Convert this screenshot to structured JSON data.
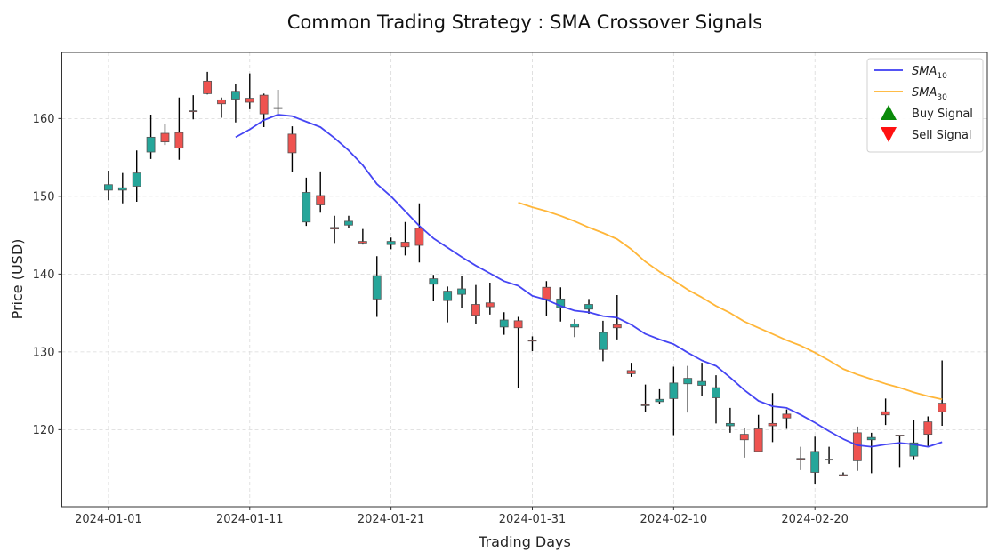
{
  "chart_data": {
    "type": "candlestick",
    "title": "Common Trading Strategy :  SMA Crossover Signals",
    "xlabel": "Trading Days",
    "ylabel": "Price (USD)",
    "ylim": [
      110.1,
      168.5
    ],
    "xlim_days": [
      -3.3,
      62.2
    ],
    "start_date": "2024-01-01",
    "grid": true,
    "legend_position": "top-right",
    "x_ticks": [
      {
        "day": 0,
        "label": "2024-01-01"
      },
      {
        "day": 10,
        "label": "2024-01-11"
      },
      {
        "day": 20,
        "label": "2024-01-21"
      },
      {
        "day": 30,
        "label": "2024-01-31"
      },
      {
        "day": 40,
        "label": "2024-02-10"
      },
      {
        "day": 50,
        "label": "2024-02-20"
      }
    ],
    "y_ticks": [
      120,
      130,
      140,
      150,
      160
    ],
    "colors": {
      "up": "#26a69a",
      "down": "#ef5350",
      "sma10": "#3b3bf2",
      "sma30": "#ffb22e",
      "buy": "#0a8a0a",
      "sell": "#ff1111"
    },
    "legend": [
      {
        "key": "sma10",
        "label": "SMA",
        "sub": "10",
        "kind": "line"
      },
      {
        "key": "sma30",
        "label": "SMA",
        "sub": "30",
        "kind": "line"
      },
      {
        "key": "buy",
        "label": "Buy Signal",
        "kind": "up-triangle"
      },
      {
        "key": "sell",
        "label": "Sell Signal",
        "kind": "down-triangle"
      }
    ],
    "ohlc": [
      {
        "day": 0,
        "o": 150.8,
        "h": 153.3,
        "l": 149.5,
        "c": 151.5
      },
      {
        "day": 1,
        "o": 150.8,
        "h": 153.0,
        "l": 149.1,
        "c": 151.1
      },
      {
        "day": 2,
        "o": 151.3,
        "h": 155.9,
        "l": 149.3,
        "c": 153.0
      },
      {
        "day": 3,
        "o": 155.7,
        "h": 160.5,
        "l": 154.8,
        "c": 157.6
      },
      {
        "day": 4,
        "o": 158.1,
        "h": 159.3,
        "l": 156.6,
        "c": 157.0
      },
      {
        "day": 5,
        "o": 158.2,
        "h": 162.7,
        "l": 154.7,
        "c": 156.2
      },
      {
        "day": 6,
        "o": 161.0,
        "h": 163.0,
        "l": 159.9,
        "c": 160.9
      },
      {
        "day": 7,
        "o": 164.8,
        "h": 166.0,
        "l": 163.1,
        "c": 163.2
      },
      {
        "day": 8,
        "o": 162.4,
        "h": 162.7,
        "l": 160.1,
        "c": 161.9
      },
      {
        "day": 9,
        "o": 162.5,
        "h": 164.4,
        "l": 159.5,
        "c": 163.5
      },
      {
        "day": 10,
        "o": 162.6,
        "h": 165.8,
        "l": 161.2,
        "c": 162.1
      },
      {
        "day": 11,
        "o": 163.0,
        "h": 163.2,
        "l": 158.9,
        "c": 160.6
      },
      {
        "day": 12,
        "o": 161.4,
        "h": 163.7,
        "l": 160.6,
        "c": 161.3
      },
      {
        "day": 13,
        "o": 158.0,
        "h": 159.0,
        "l": 153.1,
        "c": 155.6
      },
      {
        "day": 14,
        "o": 146.7,
        "h": 152.4,
        "l": 146.2,
        "c": 150.5
      },
      {
        "day": 15,
        "o": 150.1,
        "h": 153.2,
        "l": 147.9,
        "c": 148.9
      },
      {
        "day": 16,
        "o": 146.0,
        "h": 147.5,
        "l": 144.0,
        "c": 145.8
      },
      {
        "day": 17,
        "o": 146.3,
        "h": 147.5,
        "l": 145.9,
        "c": 146.8
      },
      {
        "day": 18,
        "o": 144.2,
        "h": 145.8,
        "l": 143.8,
        "c": 144.0
      },
      {
        "day": 19,
        "o": 136.8,
        "h": 142.3,
        "l": 134.5,
        "c": 139.8
      },
      {
        "day": 20,
        "o": 143.8,
        "h": 144.7,
        "l": 143.2,
        "c": 144.2
      },
      {
        "day": 21,
        "o": 144.1,
        "h": 146.7,
        "l": 142.4,
        "c": 143.5
      },
      {
        "day": 22,
        "o": 145.9,
        "h": 149.1,
        "l": 141.5,
        "c": 143.7
      },
      {
        "day": 23,
        "o": 138.7,
        "h": 139.9,
        "l": 136.5,
        "c": 139.4
      },
      {
        "day": 24,
        "o": 136.6,
        "h": 138.4,
        "l": 133.8,
        "c": 137.8
      },
      {
        "day": 25,
        "o": 137.4,
        "h": 139.8,
        "l": 135.6,
        "c": 138.1
      },
      {
        "day": 26,
        "o": 136.1,
        "h": 138.6,
        "l": 133.6,
        "c": 134.7
      },
      {
        "day": 27,
        "o": 136.3,
        "h": 138.9,
        "l": 134.8,
        "c": 135.8
      },
      {
        "day": 28,
        "o": 133.2,
        "h": 135.1,
        "l": 132.2,
        "c": 134.1
      },
      {
        "day": 29,
        "o": 134.0,
        "h": 134.5,
        "l": 125.4,
        "c": 133.1
      },
      {
        "day": 30,
        "o": 131.5,
        "h": 132.0,
        "l": 130.1,
        "c": 131.4
      },
      {
        "day": 31,
        "o": 138.3,
        "h": 139.1,
        "l": 134.6,
        "c": 136.8
      },
      {
        "day": 32,
        "o": 135.7,
        "h": 138.3,
        "l": 133.9,
        "c": 136.8
      },
      {
        "day": 33,
        "o": 133.2,
        "h": 134.2,
        "l": 131.9,
        "c": 133.6
      },
      {
        "day": 34,
        "o": 135.5,
        "h": 136.8,
        "l": 134.9,
        "c": 136.1
      },
      {
        "day": 35,
        "o": 130.3,
        "h": 134.0,
        "l": 128.8,
        "c": 132.5
      },
      {
        "day": 36,
        "o": 133.5,
        "h": 137.3,
        "l": 131.6,
        "c": 133.1
      },
      {
        "day": 37,
        "o": 127.6,
        "h": 128.6,
        "l": 126.8,
        "c": 127.2
      },
      {
        "day": 38,
        "o": 123.2,
        "h": 125.8,
        "l": 122.3,
        "c": 123.1
      },
      {
        "day": 39,
        "o": 123.6,
        "h": 125.2,
        "l": 123.3,
        "c": 123.9
      },
      {
        "day": 40,
        "o": 124.0,
        "h": 128.1,
        "l": 119.3,
        "c": 126.0
      },
      {
        "day": 41,
        "o": 125.9,
        "h": 128.2,
        "l": 122.2,
        "c": 126.6
      },
      {
        "day": 42,
        "o": 125.7,
        "h": 128.6,
        "l": 124.3,
        "c": 126.2
      },
      {
        "day": 43,
        "o": 124.1,
        "h": 127.0,
        "l": 120.8,
        "c": 125.4
      },
      {
        "day": 44,
        "o": 120.5,
        "h": 122.8,
        "l": 119.6,
        "c": 120.8
      },
      {
        "day": 45,
        "o": 119.4,
        "h": 120.2,
        "l": 116.4,
        "c": 118.7
      },
      {
        "day": 46,
        "o": 120.1,
        "h": 121.9,
        "l": 117.2,
        "c": 117.2
      },
      {
        "day": 47,
        "o": 120.8,
        "h": 124.7,
        "l": 118.4,
        "c": 120.5
      },
      {
        "day": 48,
        "o": 122.0,
        "h": 122.6,
        "l": 120.1,
        "c": 121.5
      },
      {
        "day": 49,
        "o": 116.3,
        "h": 117.8,
        "l": 114.8,
        "c": 116.2
      },
      {
        "day": 50,
        "o": 114.5,
        "h": 119.1,
        "l": 113.0,
        "c": 117.2
      },
      {
        "day": 51,
        "o": 116.2,
        "h": 117.8,
        "l": 115.6,
        "c": 116.1
      },
      {
        "day": 52,
        "o": 114.2,
        "h": 114.5,
        "l": 114.0,
        "c": 114.1
      },
      {
        "day": 53,
        "o": 119.6,
        "h": 120.4,
        "l": 114.7,
        "c": 116.0
      },
      {
        "day": 54,
        "o": 118.7,
        "h": 119.6,
        "l": 114.4,
        "c": 119.0
      },
      {
        "day": 55,
        "o": 122.3,
        "h": 124.0,
        "l": 120.6,
        "c": 121.9
      },
      {
        "day": 56,
        "o": 119.3,
        "h": 119.3,
        "l": 115.2,
        "c": 119.2
      },
      {
        "day": 57,
        "o": 116.6,
        "h": 121.3,
        "l": 116.2,
        "c": 118.3
      },
      {
        "day": 58,
        "o": 121.0,
        "h": 121.7,
        "l": 117.9,
        "c": 119.4
      },
      {
        "day": 59,
        "o": 123.4,
        "h": 128.9,
        "l": 120.5,
        "c": 122.3
      }
    ],
    "series": [
      {
        "name": "SMA10",
        "key": "sma10",
        "start_day": 9,
        "values": [
          157.6,
          158.6,
          159.8,
          160.5,
          160.3,
          159.6,
          158.9,
          157.5,
          155.9,
          154.0,
          151.6,
          150.0,
          148.1,
          146.2,
          144.6,
          143.4,
          142.2,
          141.1,
          140.1,
          139.1,
          138.5,
          137.2,
          136.7,
          135.9,
          135.3,
          135.1,
          134.6,
          134.4,
          133.5,
          132.3,
          131.6,
          131.0,
          129.9,
          128.9,
          128.2,
          126.7,
          125.1,
          123.7,
          123.0,
          122.8,
          121.9,
          120.9,
          119.8,
          118.8,
          118.0,
          117.8,
          118.1,
          118.3,
          118.1,
          117.8,
          118.4
        ]
      },
      {
        "name": "SMA30",
        "key": "sma30",
        "start_day": 29,
        "values": [
          149.2,
          148.6,
          148.1,
          147.5,
          146.8,
          146.0,
          145.3,
          144.5,
          143.2,
          141.6,
          140.3,
          139.2,
          138.0,
          137.0,
          135.9,
          135.0,
          133.9,
          133.1,
          132.3,
          131.5,
          130.8,
          129.9,
          128.9,
          127.8,
          127.1,
          126.5,
          125.9,
          125.4,
          124.8,
          124.3,
          123.9
        ]
      }
    ]
  }
}
